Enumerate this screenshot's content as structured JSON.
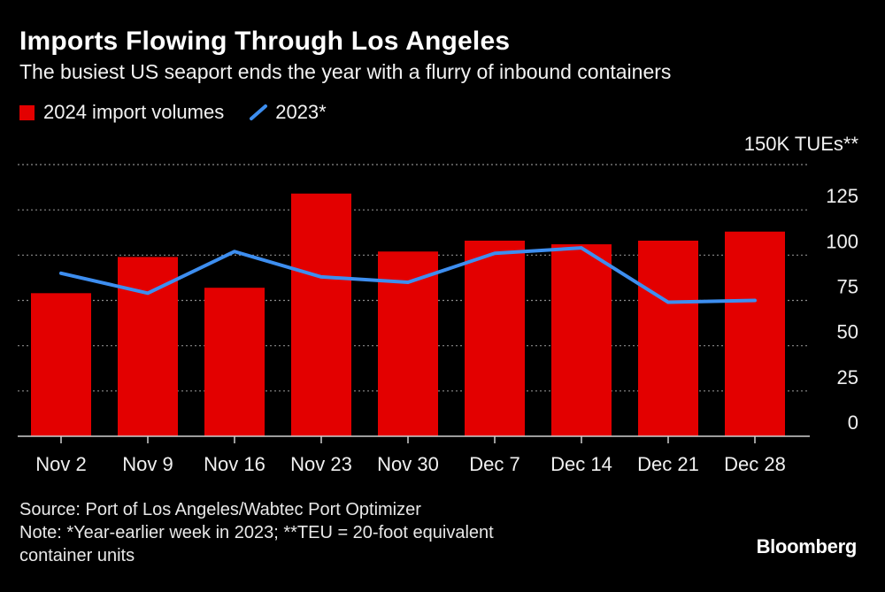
{
  "chart_data": {
    "type": "bar",
    "title": "Imports Flowing Through Los Angeles",
    "subtitle": "The busiest US seaport ends the year with a flurry of inbound containers",
    "unit_label": "150K TUEs**",
    "categories": [
      "Nov 2",
      "Nov 9",
      "Nov 16",
      "Nov 23",
      "Nov 30",
      "Dec 7",
      "Dec 14",
      "Dec 21",
      "Dec 28"
    ],
    "series": [
      {
        "name": "2024 import volumes",
        "type": "bar",
        "color": "#e30000",
        "values": [
          79,
          99,
          82,
          134,
          102,
          108,
          106,
          108,
          113
        ]
      },
      {
        "name": "2023*",
        "type": "line",
        "color": "#3d8ef0",
        "values": [
          90,
          79,
          102,
          88,
          85,
          101,
          104,
          74,
          75
        ]
      }
    ],
    "yticks": [
      0,
      25,
      50,
      75,
      100,
      125
    ],
    "ylim": [
      0,
      150
    ],
    "legend_position": "top-left",
    "grid": true
  },
  "footer": {
    "source": "Source: Port of Los Angeles/Wabtec Port Optimizer",
    "note1": "Note: *Year-earlier week in 2023; **TEU = 20-foot equivalent",
    "note2": "container units"
  },
  "brand": "Bloomberg"
}
